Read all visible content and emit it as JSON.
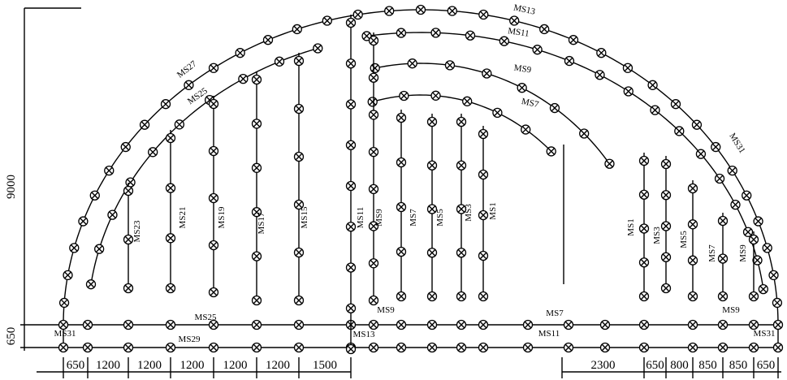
{
  "dimensions": {
    "height": "9000",
    "base": "650",
    "bottom_left": [
      "650",
      "1200",
      "1200",
      "1200",
      "1200",
      "1200",
      "1500"
    ],
    "bottom_right": [
      "2300",
      "650",
      "800",
      "850",
      "850",
      "650"
    ]
  },
  "labels": [
    "MS27",
    "MS25",
    "MS13",
    "MS11",
    "MS9",
    "MS7",
    "MS31",
    "MS23",
    "MS21",
    "MS19",
    "MS17",
    "MS15",
    "MS11",
    "MS9",
    "MS7",
    "MS5",
    "MS3",
    "MS1",
    "MS1",
    "MS3",
    "MS5",
    "MS7",
    "MS9",
    "MS25",
    "MS9",
    "MS7",
    "MS9",
    "MS31",
    "MS13",
    "MS29",
    "MS11",
    "MS31"
  ]
}
